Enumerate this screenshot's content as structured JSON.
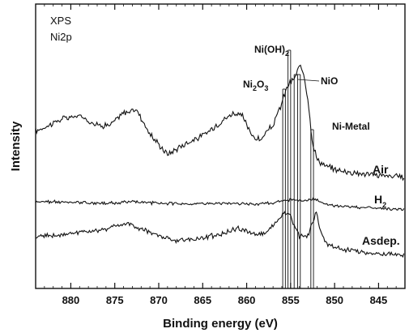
{
  "chart_data": {
    "type": "line",
    "title": "",
    "inset_text": [
      "XPS",
      "Ni2p"
    ],
    "xlabel": "Binding energy (eV)",
    "ylabel": "Intensity",
    "xlim": [
      884,
      842
    ],
    "x_reversed": true,
    "x_ticks": [
      880,
      875,
      870,
      865,
      860,
      855,
      850,
      845
    ],
    "y_ticks": [],
    "grid": false,
    "reference_lines": [
      {
        "name": "Ni2O3",
        "label_main": "Ni",
        "label_sub1": "2",
        "label_mid": "O",
        "label_sub2": "3",
        "energies": [
          855.9,
          855.6
        ]
      },
      {
        "name": "Ni(OH)2",
        "label_main": "Ni(OH)",
        "label_sub": "2",
        "energies": [
          855.3,
          855.0
        ]
      },
      {
        "name": "NiO",
        "label": "NiO",
        "energies": [
          854.6,
          854.2,
          853.9
        ]
      },
      {
        "name": "Ni-Metal",
        "label": "Ni-Metal",
        "energies": [
          852.7,
          852.4
        ]
      }
    ],
    "series": [
      {
        "name": "Air",
        "label_main": "Air",
        "x": [
          884,
          881,
          879,
          877,
          875.5,
          874,
          872.5,
          871,
          869,
          867,
          865,
          863,
          861.5,
          860.5,
          859.5,
          858.5,
          857,
          856,
          855.5,
          854.5,
          854,
          853.5,
          853,
          852.5,
          852,
          851,
          849,
          846,
          842
        ],
        "y": [
          0.2,
          0.28,
          0.3,
          0.24,
          0.24,
          0.32,
          0.34,
          0.18,
          0.05,
          0.12,
          0.17,
          0.26,
          0.32,
          0.3,
          0.18,
          0.14,
          0.24,
          0.38,
          0.48,
          0.55,
          0.62,
          0.58,
          0.4,
          0.12,
          0.02,
          -0.03,
          -0.06,
          -0.08,
          -0.1
        ]
      },
      {
        "name": "H2",
        "label_main": "H",
        "label_sub": "2",
        "x": [
          884,
          880,
          876,
          873,
          870,
          866,
          862,
          859,
          857,
          856,
          855,
          854,
          853.5,
          852.8,
          852.2,
          851.5,
          850.5,
          848,
          845,
          842
        ],
        "y": [
          0.02,
          0.0,
          -0.01,
          0.01,
          -0.01,
          -0.02,
          -0.01,
          -0.02,
          -0.01,
          0.02,
          0.04,
          0.03,
          0.02,
          0.04,
          0.05,
          0.0,
          -0.04,
          -0.06,
          -0.08,
          -0.1
        ]
      },
      {
        "name": "Asdep.",
        "label_main": "Asdep.",
        "x": [
          884,
          880,
          877,
          875,
          873.5,
          872,
          870,
          868,
          865,
          863,
          861,
          859.5,
          858,
          856.5,
          855.7,
          855,
          854.5,
          854,
          853,
          852.5,
          852.1,
          851.7,
          851,
          849.5,
          846,
          842
        ],
        "y": [
          0.05,
          0.08,
          0.1,
          0.14,
          0.16,
          0.12,
          0.06,
          0.02,
          0.04,
          0.07,
          0.12,
          0.08,
          0.08,
          0.18,
          0.26,
          0.22,
          0.12,
          0.06,
          0.06,
          0.16,
          0.26,
          0.12,
          0.0,
          -0.05,
          -0.08,
          -0.1
        ]
      }
    ]
  }
}
